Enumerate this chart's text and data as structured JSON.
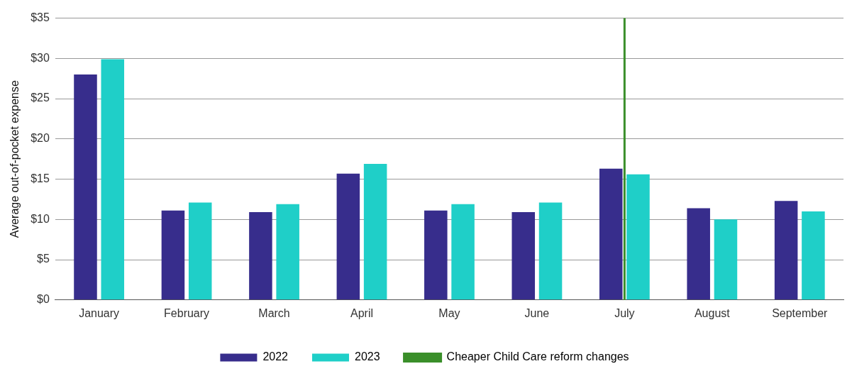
{
  "chart_data": {
    "type": "bar",
    "ylabel": "Average out-of-pocket expense",
    "categories": [
      "January",
      "February",
      "March",
      "April",
      "May",
      "June",
      "July",
      "August",
      "September"
    ],
    "series": [
      {
        "name": "2022",
        "color": "#372d8c",
        "values": [
          28.0,
          11.1,
          10.9,
          15.7,
          11.1,
          10.9,
          16.3,
          11.4,
          12.3
        ]
      },
      {
        "name": "2023",
        "color": "#1fcfc8",
        "values": [
          29.9,
          12.1,
          11.9,
          16.9,
          11.9,
          12.1,
          15.6,
          10.0,
          11.0
        ]
      }
    ],
    "ylim": [
      0,
      35
    ],
    "yticks": [
      {
        "value": 0,
        "label": "$0"
      },
      {
        "value": 5,
        "label": "$5"
      },
      {
        "value": 10,
        "label": "$10"
      },
      {
        "value": 15,
        "label": "$15"
      },
      {
        "value": 20,
        "label": "$20"
      },
      {
        "value": 25,
        "label": "$25"
      },
      {
        "value": 30,
        "label": "$30"
      },
      {
        "value": 35,
        "label": "$35"
      }
    ],
    "ref_lines": [
      {
        "axis": "x",
        "value": "July",
        "label": "Cheaper Child Care reform changes",
        "color": "#3a8f2a"
      }
    ],
    "grid": "y",
    "legend": "bottom"
  }
}
